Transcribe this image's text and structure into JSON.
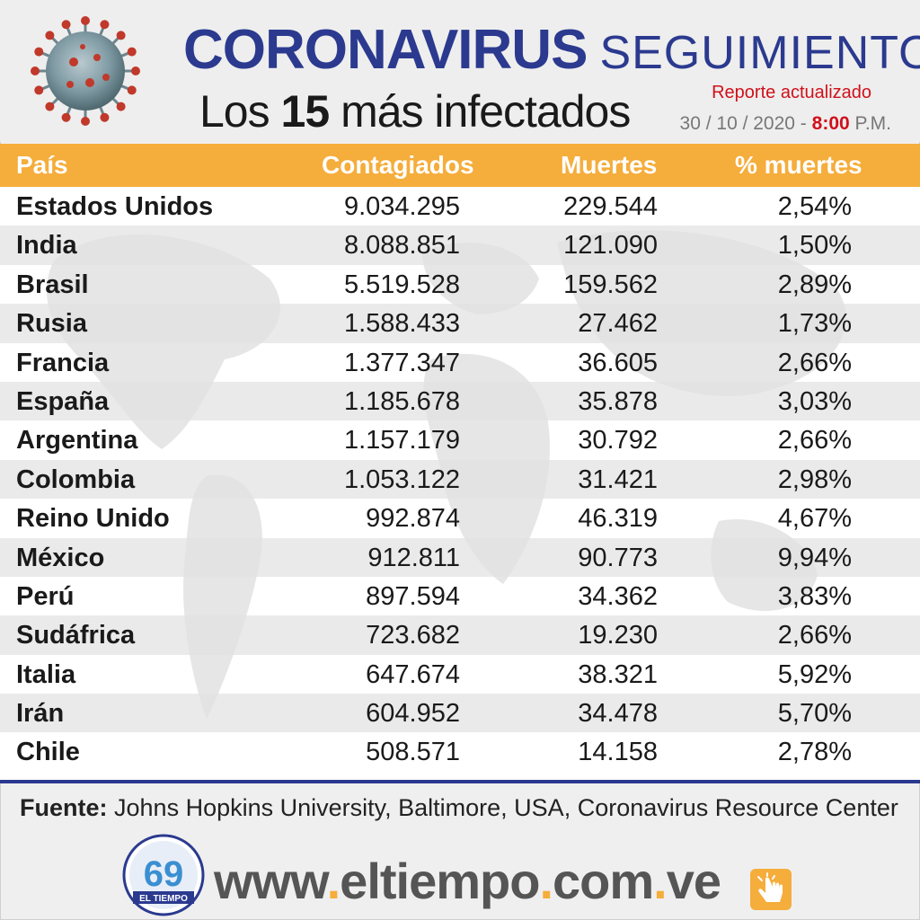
{
  "header": {
    "title_main": "CORONAVIRUS",
    "title_sub": "SEGUIMIENTO",
    "subtitle_prefix": "Los",
    "subtitle_number": "15",
    "subtitle_suffix": "más infectados",
    "report_label": "Reporte actualizado",
    "date": "30 / 10 / 2020 -",
    "hour": "8:00",
    "ampm": "P.M."
  },
  "table": {
    "columns": [
      "País",
      "Contagiados",
      "Muertes",
      "% muertes"
    ],
    "rows": [
      {
        "country": "Estados Unidos",
        "cases": "9.034.295",
        "deaths": "229.544",
        "pct": "2,54%"
      },
      {
        "country": "India",
        "cases": "8.088.851",
        "deaths": "121.090",
        "pct": "1,50%"
      },
      {
        "country": "Brasil",
        "cases": "5.519.528",
        "deaths": "159.562",
        "pct": "2,89%"
      },
      {
        "country": "Rusia",
        "cases": "1.588.433",
        "deaths": "27.462",
        "pct": "1,73%"
      },
      {
        "country": "Francia",
        "cases": "1.377.347",
        "deaths": "36.605",
        "pct": "2,66%"
      },
      {
        "country": "España",
        "cases": "1.185.678",
        "deaths": "35.878",
        "pct": "3,03%"
      },
      {
        "country": "Argentina",
        "cases": "1.157.179",
        "deaths": "30.792",
        "pct": "2,66%"
      },
      {
        "country": "Colombia",
        "cases": "1.053.122",
        "deaths": "31.421",
        "pct": "2,98%"
      },
      {
        "country": "Reino Unido",
        "cases": "992.874",
        "deaths": "46.319",
        "pct": "4,67%"
      },
      {
        "country": "México",
        "cases": "912.811",
        "deaths": "90.773",
        "pct": "9,94%"
      },
      {
        "country": "Perú",
        "cases": "897.594",
        "deaths": "34.362",
        "pct": "3,83%"
      },
      {
        "country": "Sudáfrica",
        "cases": "723.682",
        "deaths": "19.230",
        "pct": "2,66%"
      },
      {
        "country": "Italia",
        "cases": "647.674",
        "deaths": "38.321",
        "pct": "5,92%"
      },
      {
        "country": "Irán",
        "cases": "604.952",
        "deaths": "34.478",
        "pct": "5,70%"
      },
      {
        "country": "Chile",
        "cases": "508.571",
        "deaths": "14.158",
        "pct": "2,78%"
      }
    ]
  },
  "footer": {
    "source_label": "Fuente:",
    "source_text": "Johns Hopkins University, Baltimore, USA, Coronavirus Resource Center",
    "logo_text": "EL TIEMPO",
    "logo_number": "69",
    "url_parts": [
      "www",
      "eltiempo",
      "com",
      "ve"
    ],
    "url_separator": "."
  },
  "colors": {
    "title_blue": "#2b3a8f",
    "header_orange": "#f5ad3b",
    "report_red": "#d0111b"
  },
  "icons": [
    "coronavirus-icon",
    "el-tiempo-logo",
    "hand-pointer-icon"
  ]
}
